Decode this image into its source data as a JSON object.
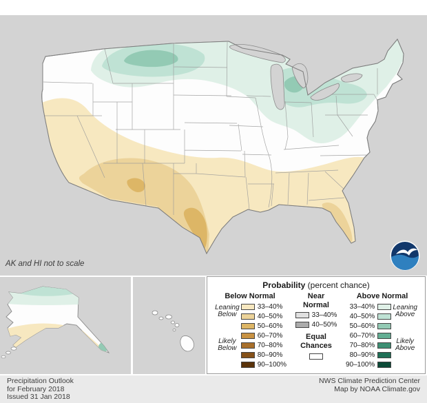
{
  "map": {
    "background_color": "#d3d3d3",
    "land_color": "#fdfdfd",
    "note": "AK and HI not to scale",
    "noaa_logo": {
      "label": "NOAA emblem",
      "dark_blue": "#12386b",
      "light_blue": "#2f80bf"
    }
  },
  "legend": {
    "title_bold": "Probability",
    "title_rest": " (percent chance)",
    "below": {
      "header": "Below Normal",
      "side_labels": [
        {
          "label": "Leaning Below",
          "rows": 2
        },
        {
          "label": "Likely Below",
          "rows": 5
        }
      ],
      "rows": [
        {
          "range": "33–40%",
          "color": "#f7e8c0"
        },
        {
          "range": "40–50%",
          "color": "#ecd39a"
        },
        {
          "range": "50–60%",
          "color": "#ddb666"
        },
        {
          "range": "60–70%",
          "color": "#c89243"
        },
        {
          "range": "70–80%",
          "color": "#a86f2b"
        },
        {
          "range": "80–90%",
          "color": "#855119"
        },
        {
          "range": "90–100%",
          "color": "#5a330a"
        }
      ]
    },
    "near": {
      "header": "Near Normal",
      "rows": [
        {
          "range": "33–40%",
          "color": "#e0e0e0"
        },
        {
          "range": "40–50%",
          "color": "#ababab"
        }
      ],
      "equal_label": "Equal Chances",
      "equal_color": "#ffffff"
    },
    "above": {
      "header": "Above Normal",
      "side_labels": [
        {
          "label": "Leaning Above",
          "rows": 2
        },
        {
          "label": "Likely Above",
          "rows": 5
        }
      ],
      "rows": [
        {
          "range": "33–40%",
          "color": "#dff0e7"
        },
        {
          "range": "40–50%",
          "color": "#bfe2d4"
        },
        {
          "range": "50–60%",
          "color": "#93cab4"
        },
        {
          "range": "60–70%",
          "color": "#63ae93"
        },
        {
          "range": "70–80%",
          "color": "#3d8f73"
        },
        {
          "range": "80–90%",
          "color": "#1f6f56"
        },
        {
          "range": "90–100%",
          "color": "#0b4a37"
        }
      ]
    }
  },
  "footer": {
    "left_lines": [
      "Precipitation Outlook",
      "for February 2018",
      "Issued 31 Jan 2018"
    ],
    "right_lines": [
      "NWS Climate Prediction Center",
      "Map by NOAA Climate.gov"
    ]
  }
}
